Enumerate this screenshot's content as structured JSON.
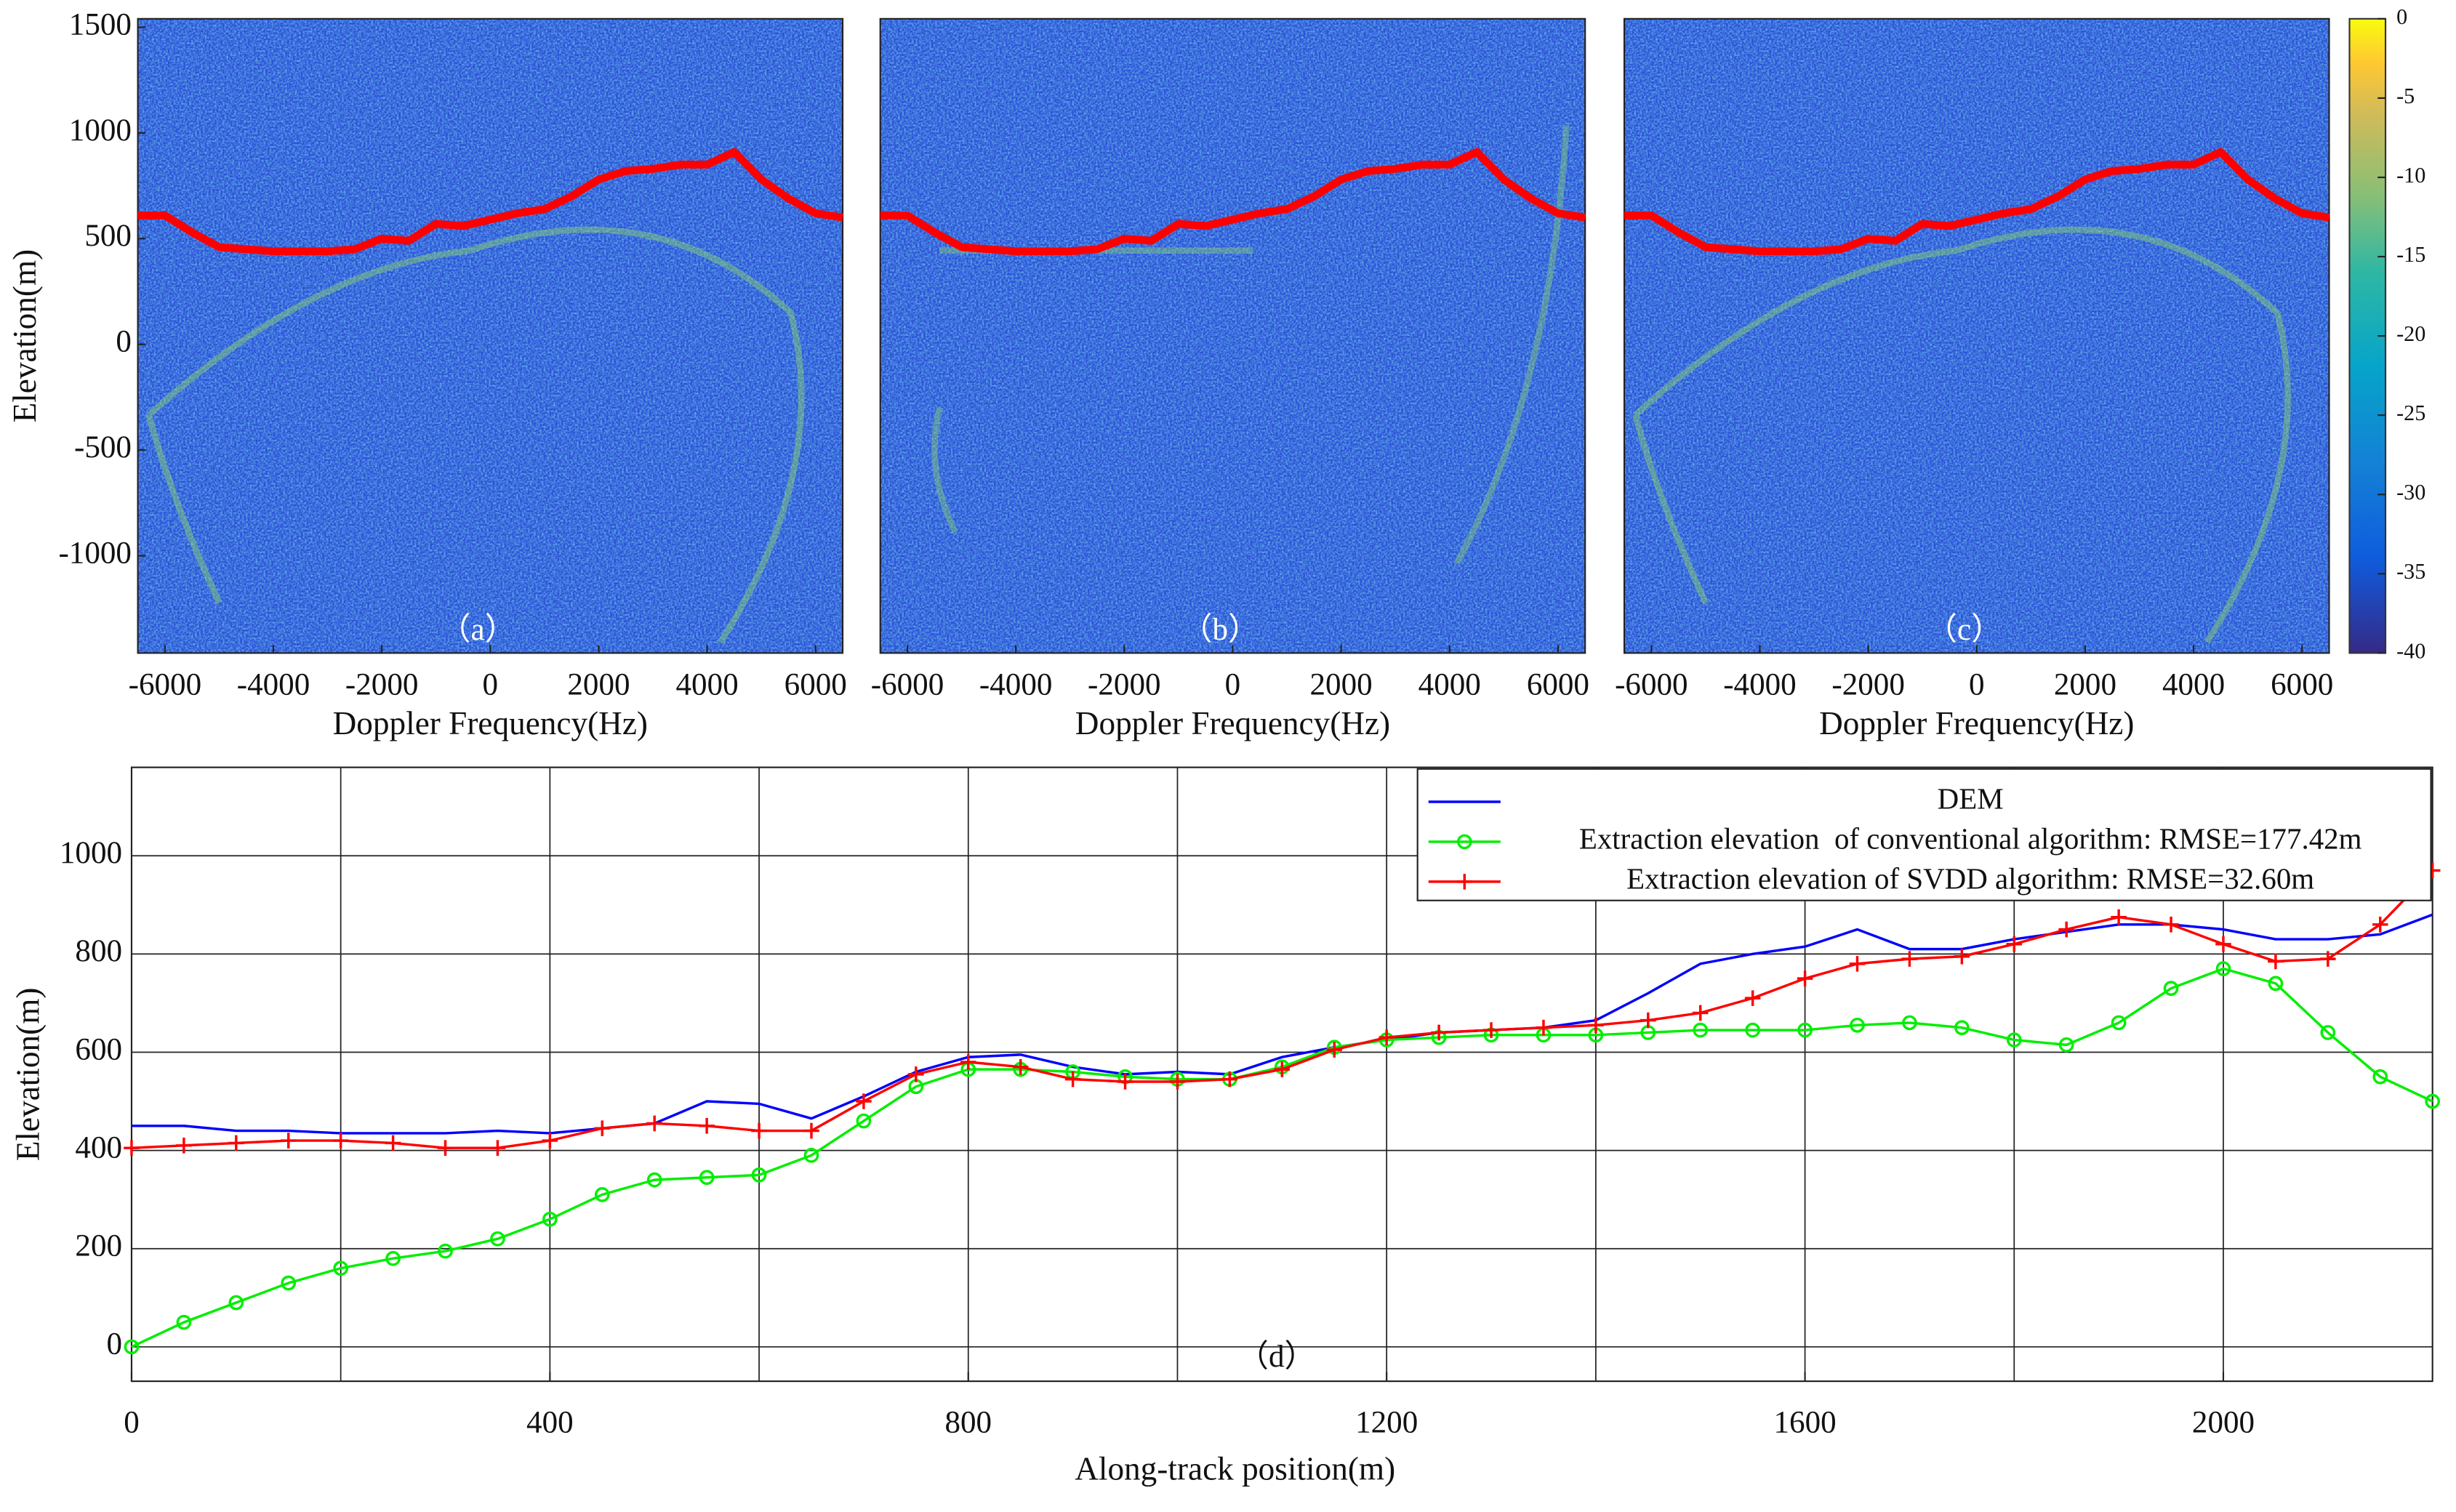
{
  "chart_data": [
    {
      "type": "heatmap",
      "label": "（a）",
      "xlabel": "Doppler Frequency(Hz)",
      "ylabel": "Elevation(m)",
      "xlim": [
        -6500,
        6500
      ],
      "ylim": [
        -1460,
        1540
      ],
      "xticks": [
        -6000,
        -4000,
        -2000,
        0,
        2000,
        4000,
        6000
      ],
      "yticks": [
        1500,
        1000,
        500,
        0,
        -500,
        -1000
      ],
      "series": [
        {
          "color": "#ff0000",
          "x": [
            -6500,
            -6000,
            -5500,
            -5000,
            -4500,
            -4000,
            -3500,
            -3000,
            -2500,
            -2000,
            -1500,
            -1000,
            -500,
            0,
            500,
            1000,
            1500,
            2000,
            2500,
            3000,
            3500,
            4000,
            4500,
            5000,
            5500,
            6000,
            6500
          ],
          "values": [
            610,
            610,
            530,
            460,
            450,
            440,
            440,
            440,
            450,
            500,
            490,
            570,
            560,
            590,
            620,
            640,
            700,
            780,
            820,
            830,
            850,
            850,
            910,
            780,
            690,
            620,
            600
          ]
        }
      ]
    },
    {
      "type": "heatmap",
      "label": "（b）",
      "xlabel": "Doppler Frequency(Hz)",
      "xlim": [
        -6500,
        6500
      ],
      "ylim": [
        -1460,
        1540
      ],
      "xticks": [
        -6000,
        -4000,
        -2000,
        0,
        2000,
        4000,
        6000
      ],
      "series": [
        {
          "color": "#ff0000",
          "x": [
            -6500,
            -6000,
            -5500,
            -5000,
            -4500,
            -4000,
            -3500,
            -3000,
            -2500,
            -2000,
            -1500,
            -1000,
            -500,
            0,
            500,
            1000,
            1500,
            2000,
            2500,
            3000,
            3500,
            4000,
            4500,
            5000,
            5500,
            6000,
            6500
          ],
          "values": [
            610,
            610,
            530,
            460,
            450,
            440,
            440,
            440,
            450,
            500,
            490,
            570,
            560,
            590,
            620,
            640,
            700,
            780,
            820,
            830,
            850,
            850,
            910,
            780,
            690,
            620,
            600
          ]
        }
      ]
    },
    {
      "type": "heatmap",
      "label": "（c）",
      "xlabel": "Doppler Frequency(Hz)",
      "xlim": [
        -6500,
        6500
      ],
      "ylim": [
        -1460,
        1540
      ],
      "xticks": [
        -6000,
        -4000,
        -2000,
        0,
        2000,
        4000,
        6000
      ],
      "colorbar": {
        "lim": [
          -40,
          0
        ],
        "ticks": [
          0,
          -5,
          -10,
          -15,
          -20,
          -25,
          -30,
          -35,
          -40
        ]
      },
      "series": [
        {
          "color": "#ff0000",
          "x": [
            -6500,
            -6000,
            -5500,
            -5000,
            -4500,
            -4000,
            -3500,
            -3000,
            -2500,
            -2000,
            -1500,
            -1000,
            -500,
            0,
            500,
            1000,
            1500,
            2000,
            2500,
            3000,
            3500,
            4000,
            4500,
            5000,
            5500,
            6000,
            6500
          ],
          "values": [
            610,
            610,
            530,
            460,
            450,
            440,
            440,
            440,
            450,
            500,
            490,
            570,
            560,
            590,
            620,
            640,
            700,
            780,
            820,
            830,
            850,
            850,
            910,
            780,
            690,
            620,
            600
          ]
        }
      ]
    },
    {
      "type": "line",
      "label": "（d）",
      "xlabel": "Along-track position(m)",
      "ylabel": "Elevation(m)",
      "xlim": [
        0,
        2200
      ],
      "ylim": [
        -70,
        1180
      ],
      "xticks": [
        0,
        400,
        800,
        1200,
        1600,
        2000
      ],
      "yticks": [
        0,
        200,
        400,
        600,
        800,
        1000
      ],
      "grid_x": [
        200,
        400,
        600,
        800,
        1000,
        1200,
        1400,
        1600,
        1800,
        2000
      ],
      "x": [
        0,
        50,
        100,
        150,
        200,
        250,
        300,
        350,
        400,
        450,
        500,
        550,
        600,
        650,
        700,
        750,
        800,
        850,
        900,
        950,
        1000,
        1050,
        1100,
        1150,
        1200,
        1250,
        1300,
        1350,
        1400,
        1450,
        1500,
        1550,
        1600,
        1650,
        1700,
        1750,
        1800,
        1850,
        1900,
        1950,
        2000,
        2050,
        2100,
        2150,
        2200
      ],
      "series": [
        {
          "name": "DEM",
          "color": "#0000ff",
          "marker": "none",
          "values": [
            450,
            450,
            440,
            440,
            435,
            435,
            435,
            440,
            435,
            445,
            455,
            500,
            495,
            465,
            510,
            560,
            590,
            595,
            570,
            555,
            560,
            555,
            590,
            610,
            625,
            640,
            645,
            650,
            665,
            720,
            780,
            800,
            815,
            850,
            810,
            810,
            830,
            845,
            860,
            860,
            850,
            830,
            830,
            840,
            880
          ]
        },
        {
          "name": "Extraction elevation  of conventional algorithm: RMSE=177.42m",
          "color": "#00ee00",
          "marker": "circle",
          "values": [
            0,
            50,
            90,
            130,
            160,
            180,
            195,
            220,
            260,
            310,
            340,
            345,
            350,
            390,
            460,
            530,
            565,
            565,
            560,
            550,
            545,
            545,
            570,
            610,
            625,
            630,
            635,
            635,
            635,
            640,
            645,
            645,
            645,
            655,
            660,
            650,
            625,
            615,
            660,
            730,
            770,
            740,
            640,
            550,
            500
          ]
        },
        {
          "name": "Extraction elevation of SVDD algorithm: RMSE=32.60m",
          "color": "#ff0000",
          "marker": "plus",
          "values": [
            405,
            410,
            415,
            420,
            420,
            415,
            405,
            405,
            420,
            445,
            455,
            450,
            440,
            440,
            500,
            555,
            580,
            570,
            545,
            540,
            540,
            545,
            565,
            605,
            630,
            640,
            645,
            650,
            655,
            665,
            680,
            710,
            750,
            780,
            790,
            795,
            820,
            850,
            875,
            860,
            820,
            785,
            790,
            860,
            970
          ]
        }
      ]
    }
  ]
}
